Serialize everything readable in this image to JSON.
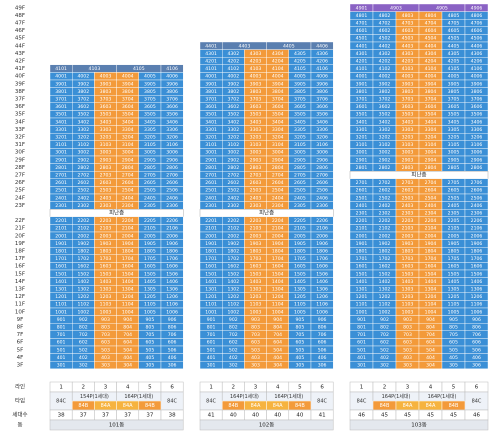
{
  "floor_labels": [
    "49F",
    "48F",
    "47F",
    "46F",
    "45F",
    "44F",
    "43F",
    "42F",
    "41F",
    "40F",
    "39F",
    "38F",
    "37F",
    "36F",
    "35F",
    "34F",
    "33F",
    "32F",
    "31F",
    "30F",
    "29F",
    "28F",
    "27F",
    "26F",
    "25F",
    "24F",
    "23F",
    null,
    "22F",
    "21F",
    "20F",
    "19F",
    "18F",
    "17F",
    "16F",
    "15F",
    "14F",
    "13F",
    "12F",
    "11F",
    "10F",
    "9F",
    "8F",
    "7F",
    "6F",
    "5F",
    "4F",
    "3F"
  ],
  "row_labels": {
    "line": "라인",
    "type": "타입",
    "households": "세대수",
    "building": "동"
  },
  "buildings": [
    {
      "name": "101동",
      "types": [
        "84C",
        "154P(1세대)",
        "164P(1세대)",
        "84C"
      ],
      "subtypes": [
        "84B",
        "84A",
        "84A",
        "84B"
      ],
      "lines": [
        1,
        2,
        3,
        4,
        5,
        6
      ],
      "households": [
        38,
        37,
        37,
        37,
        37,
        38
      ],
      "rows": [
        [
          "4101",
          "4103",
          "4105",
          "4106"
        ],
        [
          "4001",
          "4002",
          "4003",
          "4004",
          "4005",
          "4006"
        ],
        [
          "3901",
          "3902",
          "3903",
          "3904",
          "3905",
          "3906"
        ],
        [
          "3801",
          "3802",
          "3803",
          "3804",
          "3805",
          "3806"
        ],
        [
          "3701",
          "3702",
          "3703",
          "3704",
          "3705",
          "3706"
        ],
        [
          "3601",
          "3602",
          "3603",
          "3604",
          "3605",
          "3606"
        ],
        [
          "3501",
          "3502",
          "3503",
          "3504",
          "3505",
          "3506"
        ],
        [
          "3401",
          "3402",
          "3403",
          "3404",
          "3405",
          "3406"
        ],
        [
          "3301",
          "3302",
          "3303",
          "3304",
          "3305",
          "3306"
        ],
        [
          "3201",
          "3202",
          "3203",
          "3204",
          "3205",
          "3206"
        ],
        [
          "3101",
          "3102",
          "3103",
          "3104",
          "3105",
          "3106"
        ],
        [
          "3001",
          "3002",
          "3003",
          "3004",
          "3005",
          "3006"
        ],
        [
          "2901",
          "2902",
          "2903",
          "2904",
          "2905",
          "2906"
        ],
        [
          "2801",
          "2802",
          "2803",
          "2804",
          "2805",
          "2806"
        ],
        [
          "2701",
          "2702",
          "2703",
          "2704",
          "2705",
          "2706"
        ],
        [
          "2601",
          "2602",
          "2603",
          "2604",
          "2605",
          "2606"
        ],
        [
          "2501",
          "2502",
          "2503",
          "2504",
          "2505",
          "2506"
        ],
        [
          "2401",
          "2402",
          "2403",
          "2404",
          "2405",
          "2406"
        ],
        [
          "2301",
          "2302",
          "2303",
          "2304",
          "2305",
          "2306"
        ],
        "피난층",
        [
          "2201",
          "2202",
          "2203",
          "2204",
          "2205",
          "2206"
        ],
        [
          "2101",
          "2102",
          "2103",
          "2104",
          "2105",
          "2106"
        ],
        [
          "2001",
          "2002",
          "2003",
          "2004",
          "2005",
          "2006"
        ],
        [
          "1901",
          "1902",
          "1903",
          "1904",
          "1905",
          "1906"
        ],
        [
          "1801",
          "1802",
          "1803",
          "1804",
          "1805",
          "1806"
        ],
        [
          "1701",
          "1702",
          "1703",
          "1704",
          "1705",
          "1706"
        ],
        [
          "1601",
          "1602",
          "1603",
          "1604",
          "1605",
          "1606"
        ],
        [
          "1501",
          "1502",
          "1503",
          "1504",
          "1505",
          "1506"
        ],
        [
          "1401",
          "1402",
          "1403",
          "1404",
          "1405",
          "1406"
        ],
        [
          "1301",
          "1302",
          "1303",
          "1304",
          "1305",
          "1306"
        ],
        [
          "1201",
          "1202",
          "1203",
          "1204",
          "1205",
          "1206"
        ],
        [
          "1101",
          "1102",
          "1103",
          "1104",
          "1105",
          "1106"
        ],
        [
          "1001",
          "1002",
          "1003",
          "1004",
          "1005",
          "1006"
        ],
        [
          "901",
          "902",
          "903",
          "904",
          "905",
          "906"
        ],
        [
          "801",
          "802",
          "803",
          "804",
          "805",
          "806"
        ],
        [
          "701",
          "702",
          "703",
          "704",
          "705",
          "706"
        ],
        [
          "601",
          "602",
          "603",
          "604",
          "605",
          "606"
        ],
        [
          "501",
          "502",
          "503",
          "504",
          "505",
          "506"
        ],
        [
          "401",
          "402",
          "403",
          "404",
          "405",
          "406"
        ],
        [
          "301",
          "302",
          "303",
          "304",
          "305",
          "306"
        ]
      ]
    },
    {
      "name": "102동",
      "types": [
        "84C",
        "164P(1세대)",
        "164P(1세대)",
        "84C"
      ],
      "subtypes": [
        "84B",
        "84A",
        "84A",
        "84B"
      ],
      "lines": [
        1,
        2,
        3,
        4,
        5,
        6
      ],
      "households": [
        41,
        40,
        40,
        40,
        40,
        41
      ],
      "rows": [
        [
          "4401",
          "4403",
          "4405",
          "4406"
        ],
        [
          "4301",
          "4302",
          "4303",
          "4304",
          "4305",
          "4306"
        ],
        [
          "4201",
          "4202",
          "4203",
          "4204",
          "4205",
          "4206"
        ],
        [
          "4101",
          "4102",
          "4103",
          "4104",
          "4105",
          "4106"
        ],
        [
          "4001",
          "4002",
          "4003",
          "4004",
          "4005",
          "4006"
        ],
        [
          "3901",
          "3902",
          "3903",
          "3904",
          "3905",
          "3906"
        ],
        [
          "3801",
          "3802",
          "3803",
          "3804",
          "3805",
          "3806"
        ],
        [
          "3701",
          "3702",
          "3703",
          "3704",
          "3705",
          "3706"
        ],
        [
          "3601",
          "3602",
          "3603",
          "3604",
          "3605",
          "3606"
        ],
        [
          "3501",
          "3502",
          "3503",
          "3504",
          "3505",
          "3506"
        ],
        [
          "3401",
          "3402",
          "3403",
          "3404",
          "3405",
          "3406"
        ],
        [
          "3301",
          "3302",
          "3303",
          "3304",
          "3305",
          "3306"
        ],
        [
          "3201",
          "3202",
          "3203",
          "3204",
          "3205",
          "3206"
        ],
        [
          "3101",
          "3102",
          "3103",
          "3104",
          "3105",
          "3106"
        ],
        [
          "3001",
          "3002",
          "3003",
          "3004",
          "3005",
          "3006"
        ],
        [
          "2901",
          "2902",
          "2903",
          "2904",
          "2905",
          "2906"
        ],
        [
          "2801",
          "2802",
          "2803",
          "2804",
          "2805",
          "2806"
        ],
        [
          "2701",
          "2702",
          "2703",
          "2704",
          "2705",
          "2706"
        ],
        [
          "2601",
          "2602",
          "2603",
          "2604",
          "2605",
          "2606"
        ],
        [
          "2501",
          "2502",
          "2503",
          "2504",
          "2505",
          "2506"
        ],
        [
          "2401",
          "2402",
          "2403",
          "2404",
          "2405",
          "2406"
        ],
        [
          "2301",
          "2302",
          "2303",
          "2304",
          "2305",
          "2306"
        ],
        "피난층",
        [
          "2201",
          "2202",
          "2203",
          "2204",
          "2205",
          "2206"
        ],
        [
          "2101",
          "2102",
          "2103",
          "2104",
          "2105",
          "2106"
        ],
        [
          "2001",
          "2002",
          "2003",
          "2004",
          "2005",
          "2006"
        ],
        [
          "1901",
          "1902",
          "1903",
          "1904",
          "1905",
          "1906"
        ],
        [
          "1801",
          "1802",
          "1803",
          "1804",
          "1805",
          "1806"
        ],
        [
          "1701",
          "1702",
          "1703",
          "1704",
          "1705",
          "1706"
        ],
        [
          "1601",
          "1602",
          "1603",
          "1604",
          "1605",
          "1606"
        ],
        [
          "1501",
          "1502",
          "1503",
          "1504",
          "1505",
          "1506"
        ],
        [
          "1401",
          "1402",
          "1403",
          "1404",
          "1405",
          "1406"
        ],
        [
          "1301",
          "1302",
          "1303",
          "1304",
          "1305",
          "1306"
        ],
        [
          "1201",
          "1202",
          "1203",
          "1204",
          "1205",
          "1206"
        ],
        [
          "1101",
          "1102",
          "1103",
          "1104",
          "1105",
          "1106"
        ],
        [
          "1001",
          "1002",
          "1003",
          "1004",
          "1005",
          "1006"
        ],
        [
          "901",
          "902",
          "903",
          "904",
          "905",
          "906"
        ],
        [
          "801",
          "802",
          "803",
          "804",
          "805",
          "806"
        ],
        [
          "701",
          "702",
          "703",
          "704",
          "705",
          "706"
        ],
        [
          "601",
          "602",
          "603",
          "604",
          "605",
          "606"
        ],
        [
          "501",
          "502",
          "503",
          "504",
          "505",
          "506"
        ],
        [
          "401",
          "402",
          "403",
          "404",
          "405",
          "406"
        ],
        [
          "301",
          "302",
          "303",
          "304",
          "305",
          "306"
        ]
      ]
    },
    {
      "name": "103동",
      "types": [
        "84C",
        "164P(1세대)",
        "164P(1세대)",
        "84C"
      ],
      "subtypes": [
        "84B",
        "84A",
        "84A",
        "84B"
      ],
      "lines": [
        1,
        2,
        3,
        4,
        5,
        6
      ],
      "households": [
        46,
        45,
        45,
        45,
        45,
        46
      ],
      "rows": [
        [
          "4901",
          "4903",
          "4905",
          "4906"
        ],
        [
          "4801",
          "4802",
          "4803",
          "4804",
          "4805",
          "4806"
        ],
        [
          "4701",
          "4702",
          "4703",
          "4704",
          "4705",
          "4706"
        ],
        [
          "4601",
          "4602",
          "4603",
          "4604",
          "4605",
          "4606"
        ],
        [
          "4501",
          "4502",
          "4503",
          "4504",
          "4505",
          "4506"
        ],
        [
          "4401",
          "4402",
          "4403",
          "4404",
          "4405",
          "4406"
        ],
        [
          "4301",
          "4302",
          "4303",
          "4304",
          "4305",
          "4306"
        ],
        [
          "4201",
          "4202",
          "4203",
          "4204",
          "4205",
          "4206"
        ],
        [
          "4101",
          "4102",
          "4103",
          "4104",
          "4105",
          "4106"
        ],
        [
          "4001",
          "4002",
          "4003",
          "4004",
          "4005",
          "4006"
        ],
        [
          "3901",
          "3902",
          "3903",
          "3904",
          "3905",
          "3906"
        ],
        [
          "3801",
          "3802",
          "3803",
          "3804",
          "3805",
          "3806"
        ],
        [
          "3701",
          "3702",
          "3703",
          "3704",
          "3705",
          "3706"
        ],
        [
          "3601",
          "3602",
          "3603",
          "3604",
          "3605",
          "3606"
        ],
        [
          "3501",
          "3502",
          "3503",
          "3504",
          "3505",
          "3506"
        ],
        [
          "3401",
          "3402",
          "3403",
          "3404",
          "3405",
          "3406"
        ],
        [
          "3301",
          "3302",
          "3303",
          "3304",
          "3305",
          "3306"
        ],
        [
          "3201",
          "3202",
          "3203",
          "3204",
          "3205",
          "3206"
        ],
        [
          "3101",
          "3102",
          "3103",
          "3104",
          "3105",
          "3106"
        ],
        [
          "3001",
          "3002",
          "3003",
          "3004",
          "3005",
          "3006"
        ],
        [
          "2901",
          "2902",
          "2903",
          "2904",
          "2905",
          "2906"
        ],
        [
          "2801",
          "2802",
          "2803",
          "2804",
          "2805",
          "2806"
        ],
        "피난층",
        [
          "2701",
          "2702",
          "2703",
          "2704",
          "2705",
          "2706"
        ],
        [
          "2601",
          "2602",
          "2603",
          "2604",
          "2605",
          "2606"
        ],
        [
          "2501",
          "2502",
          "2503",
          "2504",
          "2505",
          "2506"
        ],
        [
          "2401",
          "2402",
          "2403",
          "2404",
          "2405",
          "2406"
        ],
        [
          "2301",
          "2302",
          "2303",
          "2304",
          "2305",
          "2306"
        ],
        [
          "2201",
          "2202",
          "2203",
          "2204",
          "2205",
          "2206"
        ],
        [
          "2101",
          "2102",
          "2103",
          "2104",
          "2105",
          "2106"
        ],
        [
          "2001",
          "2002",
          "2003",
          "2004",
          "2005",
          "2006"
        ],
        [
          "1901",
          "1902",
          "1903",
          "1904",
          "1905",
          "1906"
        ],
        [
          "1801",
          "1802",
          "1803",
          "1804",
          "1805",
          "1806"
        ],
        [
          "1701",
          "1702",
          "1703",
          "1704",
          "1705",
          "1706"
        ],
        [
          "1601",
          "1602",
          "1603",
          "1604",
          "1605",
          "1606"
        ],
        [
          "1501",
          "1502",
          "1503",
          "1504",
          "1505",
          "1506"
        ],
        [
          "1401",
          "1402",
          "1403",
          "1404",
          "1405",
          "1406"
        ],
        [
          "1301",
          "1302",
          "1303",
          "1304",
          "1305",
          "1306"
        ],
        [
          "1201",
          "1202",
          "1203",
          "1204",
          "1205",
          "1206"
        ],
        [
          "1101",
          "1102",
          "1103",
          "1104",
          "1105",
          "1106"
        ],
        [
          "1001",
          "1002",
          "1003",
          "1004",
          "1005",
          "1006"
        ],
        [
          "901",
          "902",
          "903",
          "904",
          "905",
          "906"
        ],
        [
          "801",
          "802",
          "803",
          "804",
          "805",
          "806"
        ],
        [
          "701",
          "702",
          "703",
          "704",
          "705",
          "706"
        ],
        [
          "601",
          "602",
          "603",
          "604",
          "605",
          "606"
        ],
        [
          "501",
          "502",
          "503",
          "504",
          "505",
          "506"
        ],
        [
          "401",
          "402",
          "403",
          "404",
          "405",
          "406"
        ],
        [
          "301",
          "302",
          "303",
          "304",
          "305",
          "306"
        ]
      ]
    }
  ]
}
